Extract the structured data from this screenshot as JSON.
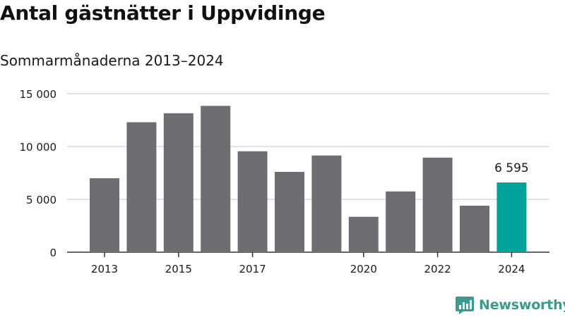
{
  "header": {
    "title": "Antal gästnätter i Uppvidinge",
    "subtitle": "Sommarmånaderna 2013–2024"
  },
  "brand": {
    "name": "Newsworthy",
    "logo_icon": "newsworthy-chart-bubble-icon",
    "color": "#3a9a8d"
  },
  "colors": {
    "bar": "#6e6d72",
    "highlight": "#00a39a",
    "grid": "#d9d9d9",
    "axis": "#333333"
  },
  "chart_data": {
    "type": "bar",
    "title": "Antal gästnätter i Uppvidinge",
    "subtitle": "Sommarmånaderna 2013–2024",
    "xlabel": "",
    "ylabel": "",
    "categories": [
      "2013",
      "2014",
      "2015",
      "2016",
      "2017",
      "2018",
      "2019",
      "2020",
      "2021",
      "2022",
      "2023",
      "2024"
    ],
    "x_tick_labels": [
      "2013",
      "",
      "2015",
      "",
      "2017",
      "",
      "",
      "2020",
      "",
      "2022",
      "",
      "2024"
    ],
    "values": [
      7000,
      12300,
      13150,
      13850,
      9550,
      7600,
      9150,
      3350,
      5750,
      8950,
      4400,
      6595
    ],
    "highlight_index": 11,
    "highlight_label": "6 595",
    "ylim": [
      0,
      15000
    ],
    "yticks": [
      0,
      5000,
      10000,
      15000
    ],
    "ytick_labels": [
      "0",
      "5 000",
      "10 000",
      "15 000"
    ],
    "grid": true,
    "legend": "none"
  }
}
